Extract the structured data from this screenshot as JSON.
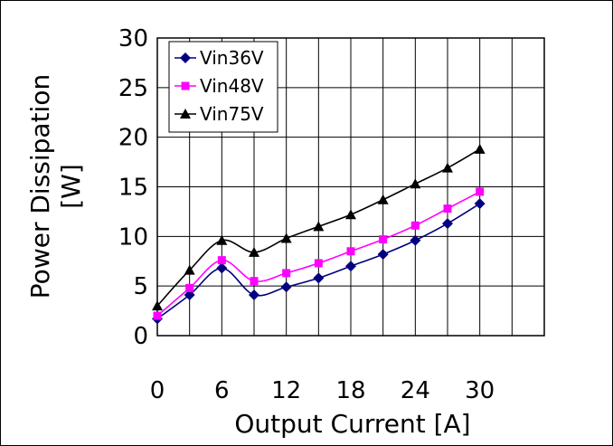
{
  "chart_data": {
    "type": "line",
    "xlabel": "Output Current [A]",
    "ylabel_line1": "Power Dissipation",
    "ylabel_line2": "[W]",
    "xlim": [
      0,
      36
    ],
    "ylim": [
      0,
      30
    ],
    "xticks": [
      0,
      6,
      12,
      18,
      24,
      30
    ],
    "yticks": [
      0,
      5,
      10,
      15,
      20,
      25,
      30
    ],
    "grid": true,
    "legend_position": "top-left",
    "series": [
      {
        "name": "Vin36V",
        "color": "#000080",
        "marker": "diamond",
        "x": [
          0,
          3,
          6,
          9,
          12,
          15,
          18,
          21,
          24,
          27,
          30
        ],
        "y": [
          1.7,
          4.1,
          6.8,
          4.1,
          4.9,
          5.8,
          7.0,
          8.2,
          9.6,
          11.3,
          13.3
        ]
      },
      {
        "name": "Vin48V",
        "color": "#ff00ff",
        "marker": "square",
        "x": [
          0,
          3,
          6,
          9,
          12,
          15,
          18,
          21,
          24,
          27,
          30
        ],
        "y": [
          2.0,
          4.8,
          7.6,
          5.5,
          6.3,
          7.3,
          8.5,
          9.7,
          11.1,
          12.8,
          14.5
        ]
      },
      {
        "name": "Vin75V",
        "color": "#000000",
        "marker": "triangle",
        "x": [
          0,
          3,
          6,
          9,
          12,
          15,
          18,
          21,
          24,
          27,
          30
        ],
        "y": [
          3.0,
          6.6,
          9.6,
          8.4,
          9.8,
          11.0,
          12.2,
          13.7,
          15.3,
          16.9,
          18.8
        ]
      }
    ]
  }
}
